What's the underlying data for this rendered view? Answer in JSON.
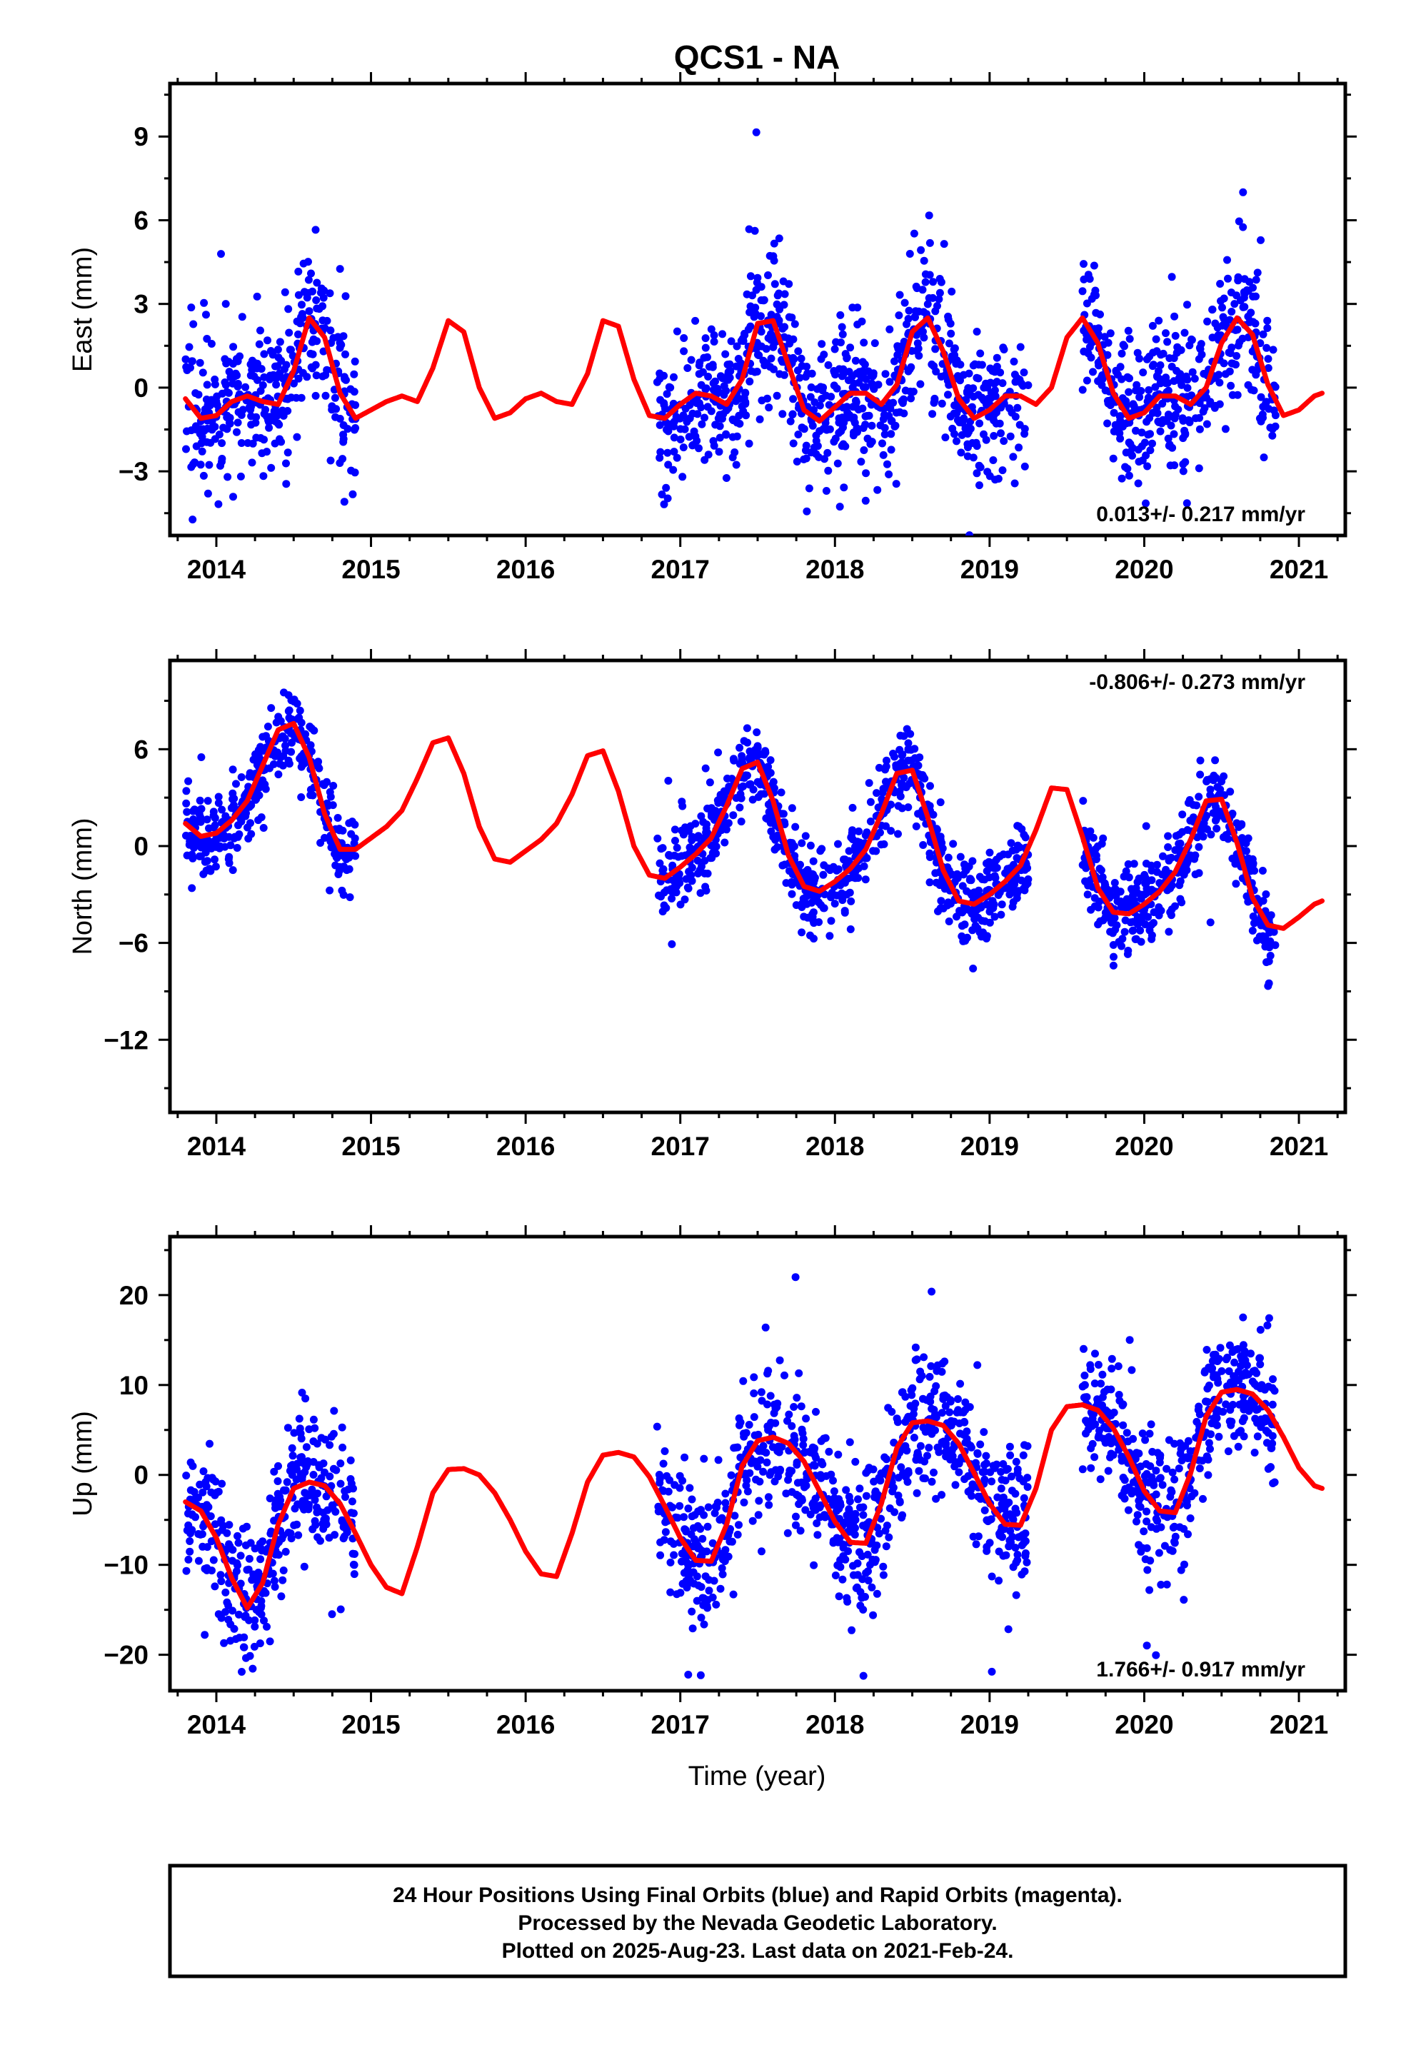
{
  "title": "QCS1 - NA",
  "xlabel": "Time (year)",
  "footer": {
    "line1": "24 Hour Positions Using Final Orbits (blue) and Rapid Orbits (magenta).",
    "line2": "Processed by the Nevada Geodetic Laboratory.",
    "line3": "Plotted on 2025-Aug-23. Last data on 2021-Feb-24."
  },
  "colors": {
    "points": "#0000ff",
    "model": "#ff0000",
    "frame": "#000000"
  },
  "chart_data": [
    {
      "type": "scatter",
      "name": "east",
      "ylabel": "East (mm)",
      "rate": "0.013+/- 0.217 mm/yr",
      "xlim": [
        2013.7,
        2021.3
      ],
      "ylim": [
        -5.3,
        10.9
      ],
      "yticks": [
        -3,
        0,
        3,
        6,
        9
      ],
      "xticks": [
        2014,
        2015,
        2016,
        2017,
        2018,
        2019,
        2020,
        2021
      ],
      "model": {
        "x": [
          2013.8,
          2013.9,
          2014.0,
          2014.1,
          2014.2,
          2014.3,
          2014.4,
          2014.5,
          2014.6,
          2014.7,
          2014.8,
          2014.9,
          2015.0,
          2015.1,
          2015.2,
          2015.3,
          2015.4,
          2015.5,
          2015.6,
          2015.7,
          2015.8,
          2015.9,
          2016.0,
          2016.1,
          2016.2,
          2016.3,
          2016.4,
          2016.5,
          2016.6,
          2016.7,
          2016.8,
          2016.9,
          2017.0,
          2017.1,
          2017.2,
          2017.3,
          2017.4,
          2017.5,
          2017.6,
          2017.7,
          2017.8,
          2017.9,
          2018.0,
          2018.1,
          2018.2,
          2018.3,
          2018.4,
          2018.5,
          2018.6,
          2018.7,
          2018.8,
          2018.9,
          2019.0,
          2019.1,
          2019.2,
          2019.3,
          2019.4,
          2019.5,
          2019.6,
          2019.7,
          2019.8,
          2019.9,
          2020.0,
          2020.1,
          2020.2,
          2020.3,
          2020.4,
          2020.5,
          2020.6,
          2020.7,
          2020.8,
          2020.9,
          2021.0,
          2021.1,
          2021.15
        ],
        "y": [
          -0.4,
          -1.1,
          -1.0,
          -0.5,
          -0.3,
          -0.5,
          -0.6,
          0.6,
          2.5,
          1.8,
          -0.2,
          -1.1,
          -0.8,
          -0.5,
          -0.3,
          -0.5,
          0.7,
          2.4,
          2.0,
          0.0,
          -1.1,
          -0.9,
          -0.4,
          -0.2,
          -0.5,
          -0.6,
          0.5,
          2.4,
          2.2,
          0.3,
          -1.0,
          -1.1,
          -0.6,
          -0.2,
          -0.3,
          -0.6,
          0.3,
          2.3,
          2.4,
          0.8,
          -0.8,
          -1.2,
          -0.7,
          -0.2,
          -0.2,
          -0.6,
          0.1,
          2.0,
          2.5,
          1.3,
          -0.4,
          -1.1,
          -0.8,
          -0.3,
          -0.3,
          -0.6,
          0.0,
          1.8,
          2.5,
          1.6,
          -0.2,
          -1.1,
          -0.9,
          -0.3,
          -0.3,
          -0.6,
          0.0,
          1.6,
          2.5,
          1.9,
          0.1,
          -1.0,
          -0.8,
          -0.3,
          -0.2
        ]
      }
    },
    {
      "type": "scatter",
      "name": "north",
      "ylabel": "North (mm)",
      "rate": "-0.806+/- 0.273 mm/yr",
      "xlim": [
        2013.7,
        2021.3
      ],
      "ylim": [
        -16.5,
        11.5
      ],
      "yticks": [
        -12,
        -6,
        0,
        6
      ],
      "xticks": [
        2014,
        2015,
        2016,
        2017,
        2018,
        2019,
        2020,
        2021
      ],
      "model": {
        "x": [
          2013.8,
          2013.9,
          2014.0,
          2014.1,
          2014.2,
          2014.3,
          2014.4,
          2014.5,
          2014.6,
          2014.7,
          2014.8,
          2014.9,
          2015.0,
          2015.1,
          2015.2,
          2015.3,
          2015.4,
          2015.5,
          2015.6,
          2015.7,
          2015.8,
          2015.9,
          2016.0,
          2016.1,
          2016.2,
          2016.3,
          2016.4,
          2016.5,
          2016.6,
          2016.7,
          2016.8,
          2016.9,
          2017.0,
          2017.1,
          2017.2,
          2017.3,
          2017.4,
          2017.5,
          2017.6,
          2017.7,
          2017.8,
          2017.9,
          2018.0,
          2018.1,
          2018.2,
          2018.3,
          2018.4,
          2018.5,
          2018.6,
          2018.7,
          2018.8,
          2018.9,
          2019.0,
          2019.1,
          2019.2,
          2019.3,
          2019.4,
          2019.5,
          2019.6,
          2019.7,
          2019.8,
          2019.9,
          2020.0,
          2020.1,
          2020.2,
          2020.3,
          2020.4,
          2020.5,
          2020.6,
          2020.7,
          2020.8,
          2020.9,
          2021.0,
          2021.1,
          2021.15
        ],
        "y": [
          1.4,
          0.6,
          0.8,
          1.6,
          2.8,
          5.0,
          7.2,
          7.6,
          5.5,
          2.0,
          -0.2,
          -0.2,
          0.5,
          1.2,
          2.2,
          4.2,
          6.4,
          6.7,
          4.5,
          1.2,
          -0.8,
          -1.0,
          -0.3,
          0.4,
          1.4,
          3.2,
          5.6,
          5.9,
          3.4,
          0.0,
          -1.8,
          -2.0,
          -1.3,
          -0.5,
          0.5,
          2.5,
          4.8,
          5.2,
          2.8,
          -0.6,
          -2.5,
          -2.8,
          -2.2,
          -1.4,
          -0.2,
          2.0,
          4.5,
          4.7,
          1.8,
          -1.5,
          -3.4,
          -3.6,
          -3.0,
          -2.2,
          -1.2,
          1.0,
          3.6,
          3.5,
          0.6,
          -2.6,
          -4.1,
          -4.2,
          -3.6,
          -2.8,
          -1.6,
          0.4,
          2.8,
          2.9,
          0.2,
          -3.2,
          -4.9,
          -5.1,
          -4.4,
          -3.6,
          -3.4
        ]
      }
    },
    {
      "type": "scatter",
      "name": "up",
      "ylabel": "Up (mm)",
      "rate": "1.766+/- 0.917 mm/yr",
      "xlim": [
        2013.7,
        2021.3
      ],
      "ylim": [
        -24,
        26.5
      ],
      "yticks": [
        -20,
        -10,
        0,
        10,
        20
      ],
      "xticks": [
        2014,
        2015,
        2016,
        2017,
        2018,
        2019,
        2020,
        2021
      ],
      "model": {
        "x": [
          2013.8,
          2013.9,
          2014.0,
          2014.1,
          2014.2,
          2014.3,
          2014.4,
          2014.5,
          2014.6,
          2014.7,
          2014.8,
          2014.9,
          2015.0,
          2015.1,
          2015.2,
          2015.3,
          2015.4,
          2015.5,
          2015.6,
          2015.7,
          2015.8,
          2015.9,
          2016.0,
          2016.1,
          2016.2,
          2016.3,
          2016.4,
          2016.5,
          2016.6,
          2016.7,
          2016.8,
          2016.9,
          2017.0,
          2017.1,
          2017.2,
          2017.3,
          2017.4,
          2017.5,
          2017.6,
          2017.7,
          2017.8,
          2017.9,
          2018.0,
          2018.1,
          2018.2,
          2018.3,
          2018.4,
          2018.5,
          2018.6,
          2018.7,
          2018.8,
          2018.9,
          2019.0,
          2019.1,
          2019.2,
          2019.3,
          2019.4,
          2019.5,
          2019.6,
          2019.7,
          2019.8,
          2019.9,
          2020.0,
          2020.1,
          2020.2,
          2020.3,
          2020.4,
          2020.5,
          2020.6,
          2020.7,
          2020.8,
          2020.9,
          2021.0,
          2021.1,
          2021.15
        ],
        "y": [
          -3.0,
          -4.0,
          -7.0,
          -11.5,
          -14.8,
          -12.0,
          -5.5,
          -1.5,
          -0.8,
          -1.2,
          -3.2,
          -6.5,
          -10.0,
          -12.5,
          -13.2,
          -8.0,
          -2.0,
          0.6,
          0.7,
          0.0,
          -2.0,
          -5.0,
          -8.5,
          -11.0,
          -11.3,
          -6.5,
          -0.8,
          2.2,
          2.5,
          2.0,
          -0.2,
          -3.5,
          -7.0,
          -9.5,
          -9.6,
          -5.5,
          1.0,
          3.8,
          4.2,
          3.5,
          1.5,
          -1.8,
          -5.2,
          -7.5,
          -7.6,
          -3.2,
          3.0,
          5.8,
          6.0,
          5.5,
          3.5,
          0.2,
          -3.2,
          -5.5,
          -5.6,
          -1.5,
          5.0,
          7.6,
          7.8,
          7.2,
          5.2,
          2.0,
          -1.8,
          -4.0,
          -4.2,
          0.2,
          6.5,
          9.2,
          9.5,
          9.0,
          7.2,
          4.2,
          0.8,
          -1.2,
          -1.5
        ]
      }
    }
  ]
}
